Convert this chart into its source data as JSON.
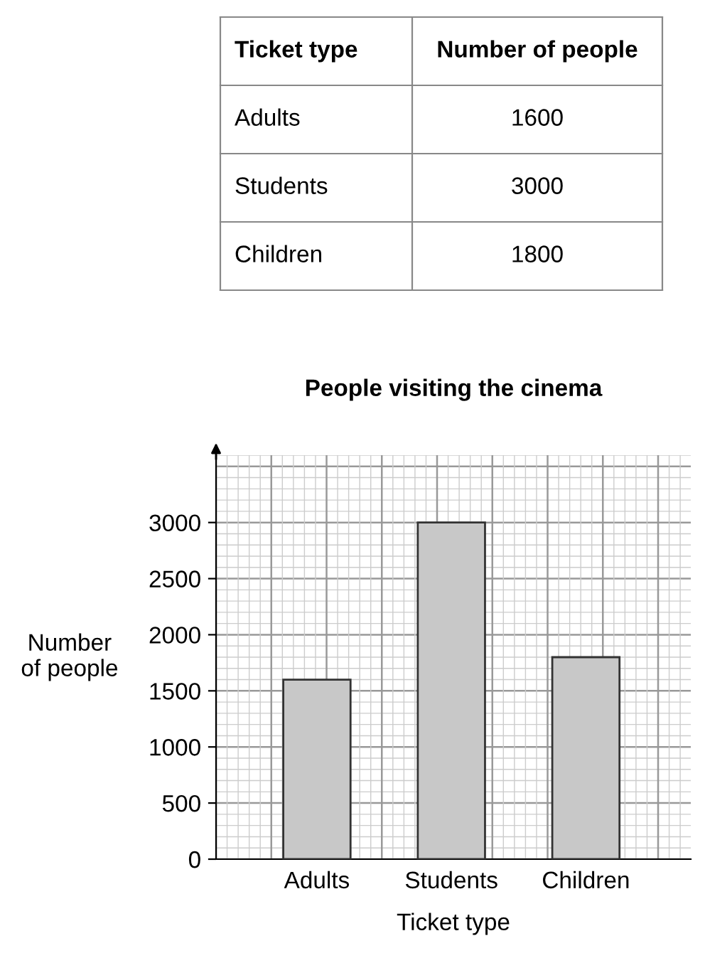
{
  "chart_data": [
    {
      "type": "other",
      "annotations": [
        "Ticket type",
        "Number of people",
        "Adults",
        "1600",
        "Students",
        "3000",
        "Children",
        "1800"
      ]
    },
    {
      "type": "bar",
      "title": "People visiting the cinema",
      "xlabel": "Ticket type",
      "ylabel": "Number of people",
      "categories": [
        "Adults",
        "Students",
        "Children"
      ],
      "values": [
        1600,
        3000,
        1800
      ],
      "color": "#c8c8c8",
      "ylim": [
        0,
        3600
      ],
      "yticks": [
        0,
        500,
        1000,
        1500,
        2000,
        2500,
        3000
      ],
      "grid": true
    }
  ]
}
